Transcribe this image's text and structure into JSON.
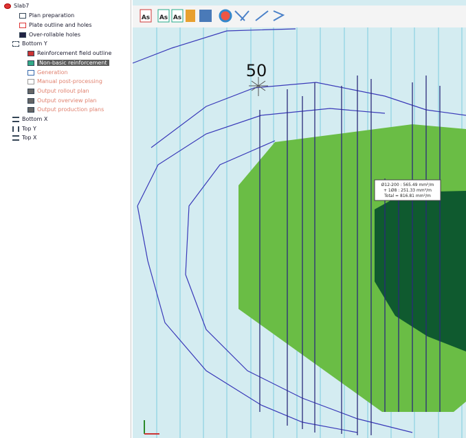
{
  "tree": {
    "root": "Slab7",
    "children": [
      {
        "label": "Plan preparation"
      },
      {
        "label": "Plate outline and holes"
      },
      {
        "label": "Over-rollable holes"
      },
      {
        "label": "Bottom Y",
        "children": [
          {
            "label": "Reinforcement field outline"
          },
          {
            "label": "Non-basic reinforcement"
          },
          {
            "label": "Generation"
          },
          {
            "label": "Manual post-processing"
          },
          {
            "label": "Output rollout plan"
          },
          {
            "label": "Output overview plan"
          },
          {
            "label": "Output production plans"
          }
        ]
      },
      {
        "label": "Bottom X"
      },
      {
        "label": "Top Y"
      },
      {
        "label": "Top X"
      }
    ]
  },
  "toolbar": [
    "As",
    "As",
    "As"
  ],
  "canvas": {
    "contour_label": "50",
    "tooltip": [
      "Ø12-200 : 565.49 mm²/m",
      "+ 1Ø8 : 251.33 mm²/m",
      "Total = 816.81 mm²/m"
    ]
  }
}
